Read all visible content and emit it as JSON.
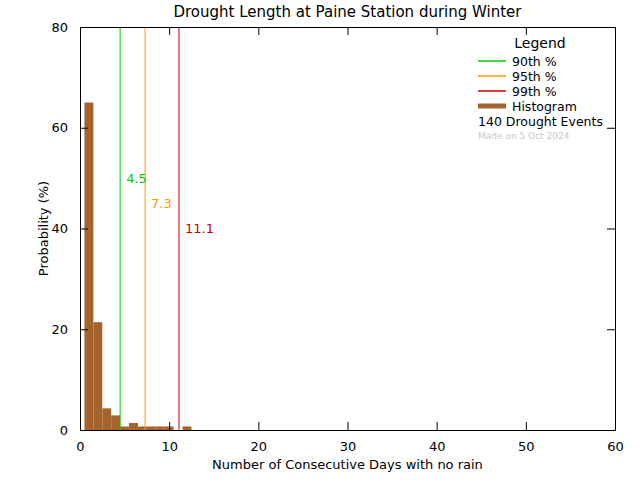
{
  "chart_data": {
    "type": "histogram",
    "title": "Drought Length at Paine Station during Winter",
    "x_label": "Number of Consecutive Days with no rain",
    "y_label": "Probability (%)",
    "name": "Histogram",
    "color": "#a5632d",
    "bins": [
      0.5,
      1.5,
      2.5,
      3.5,
      4.5,
      5.5,
      6.5,
      7.5,
      8.5,
      9.5,
      10.5,
      11.5,
      12.5
    ],
    "values": [
      65,
      21.4,
      4.3,
      2.9,
      0.7,
      1.4,
      0.7,
      0.7,
      0.7,
      0.7,
      0,
      0.7
    ],
    "xlim": [
      0,
      60
    ],
    "ylim": [
      0,
      80
    ],
    "xticks": [
      0,
      10,
      20,
      30,
      40,
      50,
      60
    ],
    "yticks": [
      0,
      20,
      40,
      60,
      80
    ],
    "percentiles": [
      {
        "name": "90th %",
        "value": 4.5,
        "color": "#00cc00"
      },
      {
        "name": "95th %",
        "value": 7.3,
        "color": "#ff9900"
      },
      {
        "name": "99th %",
        "value": 11.1,
        "color": "#cc0000"
      }
    ],
    "legend": "top-right",
    "legend_title": "Legend",
    "annotations": [
      "140 Drought Events",
      "Made on 5 Oct 2024"
    ]
  }
}
